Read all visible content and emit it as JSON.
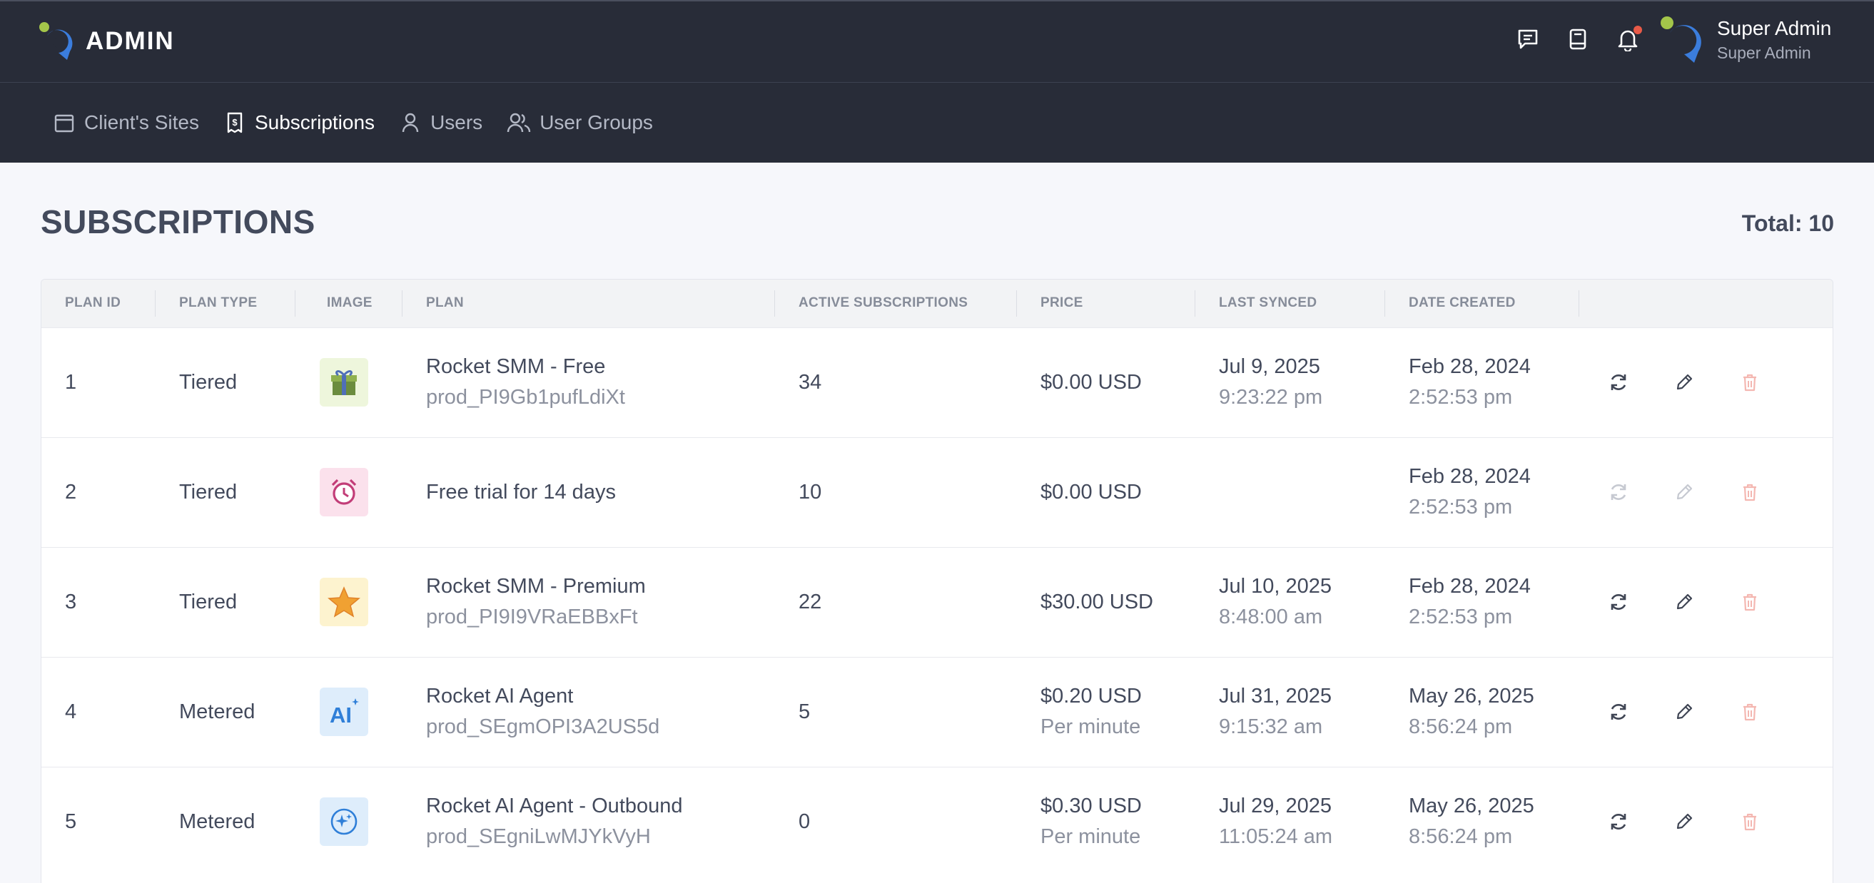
{
  "header": {
    "brand": "ADMIN",
    "icons": [
      "chat-icon",
      "book-icon",
      "bell-icon"
    ],
    "user": {
      "name": "Super Admin",
      "role": "Super Admin"
    }
  },
  "nav": {
    "items": [
      {
        "label": "Client's Sites",
        "icon": "calendar-icon",
        "active": false
      },
      {
        "label": "Subscriptions",
        "icon": "receipt-icon",
        "active": true
      },
      {
        "label": "Users",
        "icon": "user-icon",
        "active": false
      },
      {
        "label": "User Groups",
        "icon": "users-icon",
        "active": false
      }
    ]
  },
  "page": {
    "title": "SUBSCRIPTIONS",
    "total": "Total: 10"
  },
  "table": {
    "columns": [
      "PLAN ID",
      "PLAN TYPE",
      "IMAGE",
      "PLAN",
      "ACTIVE SUBSCRIPTIONS",
      "PRICE",
      "LAST SYNCED",
      "DATE CREATED"
    ],
    "rows": [
      {
        "id": "1",
        "type": "Tiered",
        "image": "gift-icon",
        "plan": "Rocket SMM - Free",
        "product": "prod_PI9Gb1pufLdiXt",
        "active": "34",
        "price": "$0.00 USD",
        "price_unit": "",
        "synced_date": "Jul 9, 2025",
        "synced_time": "9:23:22 pm",
        "created_date": "Feb 28, 2024",
        "created_time": "2:52:53 pm",
        "enabled": true
      },
      {
        "id": "2",
        "type": "Tiered",
        "image": "alarm-clock-icon",
        "plan": "Free trial for 14 days",
        "product": "",
        "active": "10",
        "price": "$0.00 USD",
        "price_unit": "",
        "synced_date": "",
        "synced_time": "",
        "created_date": "Feb 28, 2024",
        "created_time": "2:52:53 pm",
        "enabled": false
      },
      {
        "id": "3",
        "type": "Tiered",
        "image": "star-icon",
        "plan": "Rocket SMM - Premium",
        "product": "prod_PI9I9VRaEBBxFt",
        "active": "22",
        "price": "$30.00 USD",
        "price_unit": "",
        "synced_date": "Jul 10, 2025",
        "synced_time": "8:48:00 am",
        "created_date": "Feb 28, 2024",
        "created_time": "2:52:53 pm",
        "enabled": true
      },
      {
        "id": "4",
        "type": "Metered",
        "image": "ai-icon",
        "plan": "Rocket AI Agent",
        "product": "prod_SEgmOPI3A2US5d",
        "active": "5",
        "price": "$0.20 USD",
        "price_unit": "Per minute",
        "synced_date": "Jul 31, 2025",
        "synced_time": "9:15:32 am",
        "created_date": "May 26, 2025",
        "created_time": "8:56:24 pm",
        "enabled": true
      },
      {
        "id": "5",
        "type": "Metered",
        "image": "sparkle-icon",
        "plan": "Rocket AI Agent - Outbound",
        "product": "prod_SEgniLwMJYkVyH",
        "active": "0",
        "price": "$0.30 USD",
        "price_unit": "Per minute",
        "synced_date": "Jul 29, 2025",
        "synced_time": "11:05:24 am",
        "created_date": "May 26, 2025",
        "created_time": "8:56:24 pm",
        "enabled": true
      }
    ]
  },
  "colors": {
    "header_bg": "#282c38",
    "accent_blue": "#3b7ddd",
    "logo_green": "#a4c64a",
    "notif_red": "#e85a48",
    "delete_faded": "#f4b7b1"
  }
}
